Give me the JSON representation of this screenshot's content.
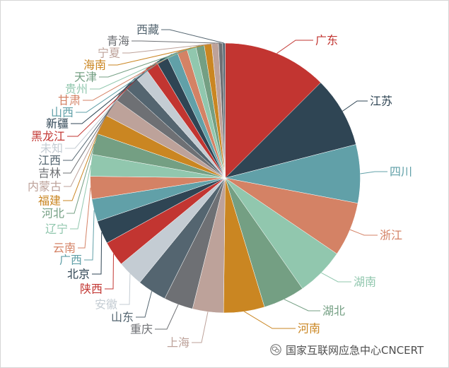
{
  "chart_data": {
    "type": "pie",
    "label_position": "outside",
    "categories": [
      "广东",
      "江苏",
      "四川",
      "浙江",
      "湖南",
      "湖北",
      "河南",
      "上海",
      "重庆",
      "山东",
      "安徽",
      "陕西",
      "北京",
      "广西",
      "云南",
      "辽宁",
      "河北",
      "福建",
      "内蒙古",
      "吉林",
      "江西",
      "未知",
      "黑龙江",
      "新疆",
      "山西",
      "甘肃",
      "贵州",
      "天津",
      "海南",
      "宁夏",
      "青海",
      "西藏"
    ],
    "values": [
      12.5,
      8.5,
      7.0,
      6.5,
      5.8,
      5.0,
      4.9,
      3.7,
      3.5,
      3.5,
      3.1,
      3.0,
      2.8,
      2.7,
      2.7,
      2.6,
      2.5,
      2.4,
      2.2,
      1.8,
      1.7,
      1.6,
      1.5,
      1.4,
      1.3,
      1.2,
      1.1,
      1.0,
      0.9,
      0.8,
      0.5,
      0.3
    ],
    "palette": [
      "#c23531",
      "#2f4554",
      "#61a0a8",
      "#d48265",
      "#91c7ae",
      "#749f83",
      "#ca8622",
      "#bda29a",
      "#6e7074",
      "#546570",
      "#c4ccd3"
    ]
  },
  "watermark": {
    "icon": "wechat-icon",
    "text": "国家互联网应急中心CNCERT"
  }
}
